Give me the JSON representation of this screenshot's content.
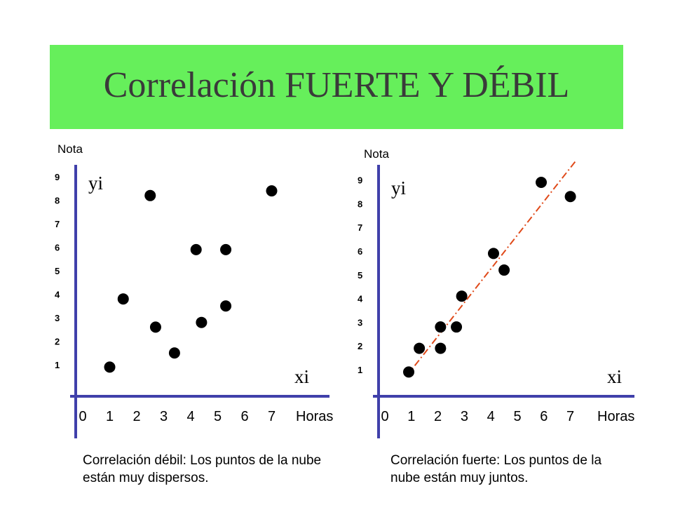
{
  "title": "Correlación FUERTE Y DÉBIL",
  "colors": {
    "title_band": "#66ef5b",
    "axis": "#4040aa",
    "trend": "#e04a1a",
    "points": "#000000"
  },
  "chart_data": [
    {
      "type": "scatter",
      "ylabel": "Nota",
      "xlabel": "Horas",
      "y_axis_name": "yi",
      "x_axis_name": "xi",
      "y_ticks": [
        "9",
        "8",
        "7",
        "6",
        "5",
        "4",
        "3",
        "2",
        "1"
      ],
      "x_ticks": [
        "0",
        "1",
        "2",
        "3",
        "4",
        "5",
        "6",
        "7"
      ],
      "points": [
        {
          "x": 1.0,
          "y": 0.9
        },
        {
          "x": 1.5,
          "y": 3.8
        },
        {
          "x": 2.5,
          "y": 8.2
        },
        {
          "x": 2.7,
          "y": 2.6
        },
        {
          "x": 3.4,
          "y": 1.5
        },
        {
          "x": 4.2,
          "y": 5.9
        },
        {
          "x": 4.4,
          "y": 2.8
        },
        {
          "x": 5.3,
          "y": 5.9
        },
        {
          "x": 5.3,
          "y": 3.5
        },
        {
          "x": 7.0,
          "y": 8.4
        }
      ],
      "caption": "Correlación débil: Los puntos de la nube están muy dispersos."
    },
    {
      "type": "scatter",
      "ylabel": "Nota",
      "xlabel": "Horas",
      "y_axis_name": "yi",
      "x_axis_name": "xi",
      "y_ticks": [
        "9",
        "8",
        "7",
        "6",
        "5",
        "4",
        "3",
        "2",
        "1"
      ],
      "x_ticks": [
        "0",
        "1",
        "2",
        "3",
        "4",
        "5",
        "6",
        "7"
      ],
      "points": [
        {
          "x": 0.9,
          "y": 0.9
        },
        {
          "x": 1.3,
          "y": 1.9
        },
        {
          "x": 2.1,
          "y": 1.9
        },
        {
          "x": 2.1,
          "y": 2.8
        },
        {
          "x": 2.7,
          "y": 2.8
        },
        {
          "x": 2.9,
          "y": 4.1
        },
        {
          "x": 4.1,
          "y": 5.9
        },
        {
          "x": 4.5,
          "y": 5.2
        },
        {
          "x": 5.9,
          "y": 8.9
        },
        {
          "x": 7.0,
          "y": 8.3
        }
      ],
      "trend_line": {
        "style": "dash-dot",
        "from": {
          "x": 0.8,
          "y": 0.7
        },
        "to": {
          "x": 7.2,
          "y": 9.8
        }
      },
      "caption": "Correlación fuerte: Los puntos de la nube están muy juntos."
    }
  ]
}
